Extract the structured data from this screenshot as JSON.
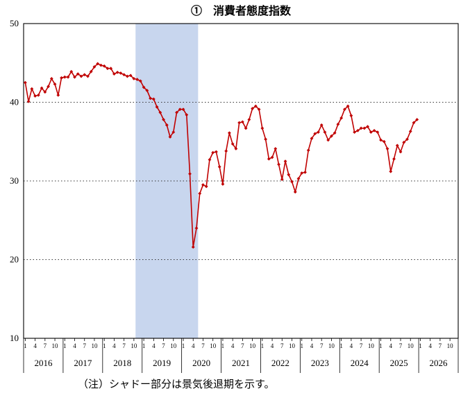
{
  "chart_data": {
    "type": "line",
    "title": "①　消費者態度指数",
    "note": "（注）シャドー部分は景気後退期を示す。",
    "ylim": [
      10,
      50
    ],
    "ytick_step": 10,
    "gridlines": [
      20,
      30,
      40
    ],
    "grid_style": "dotted",
    "x_years": [
      "2016",
      "2017",
      "2018",
      "2019",
      "2020",
      "2021",
      "2022",
      "2023",
      "2024",
      "2025",
      "2026"
    ],
    "month_ticks": [
      1,
      4,
      7,
      10
    ],
    "line_color": "#c00000",
    "shade_color": "#c8d6ee",
    "recession_shading": {
      "start": "2018-11",
      "end": "2020-05"
    },
    "series": [
      {
        "name": "消費者態度指数",
        "values_by_year": {
          "2016": [
            42.5,
            40.1,
            41.7,
            40.8,
            40.9,
            41.8,
            41.3,
            42.0,
            43.0,
            42.3,
            40.9,
            43.1
          ],
          "2017": [
            43.2,
            43.2,
            43.9,
            43.2,
            43.6,
            43.3,
            43.5,
            43.3,
            43.9,
            44.5,
            44.9,
            44.7
          ],
          "2018": [
            44.6,
            44.3,
            44.3,
            43.6,
            43.8,
            43.7,
            43.5,
            43.3,
            43.4,
            43.0,
            42.9,
            42.7
          ],
          "2019": [
            41.9,
            41.5,
            40.5,
            40.4,
            39.4,
            38.7,
            37.8,
            37.1,
            35.6,
            36.2,
            38.7,
            39.1
          ],
          "2020": [
            39.1,
            38.4,
            30.9,
            21.6,
            24.0,
            28.4,
            29.5,
            29.3,
            32.7,
            33.6,
            33.7,
            31.8
          ],
          "2021": [
            29.6,
            33.8,
            36.1,
            34.7,
            34.1,
            37.4,
            37.5,
            36.7,
            37.8,
            39.2,
            39.5,
            39.1
          ],
          "2022": [
            36.7,
            35.3,
            32.8,
            33.0,
            34.1,
            32.1,
            30.2,
            32.5,
            30.8,
            29.9,
            28.6,
            30.3
          ],
          "2023": [
            31.0,
            31.1,
            33.9,
            35.4,
            36.0,
            36.2,
            37.1,
            36.2,
            35.2,
            35.7,
            36.1,
            37.2
          ],
          "2024": [
            38.0,
            39.1,
            39.5,
            38.3,
            36.2,
            36.4,
            36.7,
            36.7,
            36.9,
            36.2,
            36.4,
            36.2
          ],
          "2025": [
            35.2,
            35.0,
            34.1,
            31.2,
            32.8,
            34.5,
            33.7,
            34.9,
            35.3,
            36.3,
            37.4,
            37.8
          ]
        }
      }
    ]
  }
}
